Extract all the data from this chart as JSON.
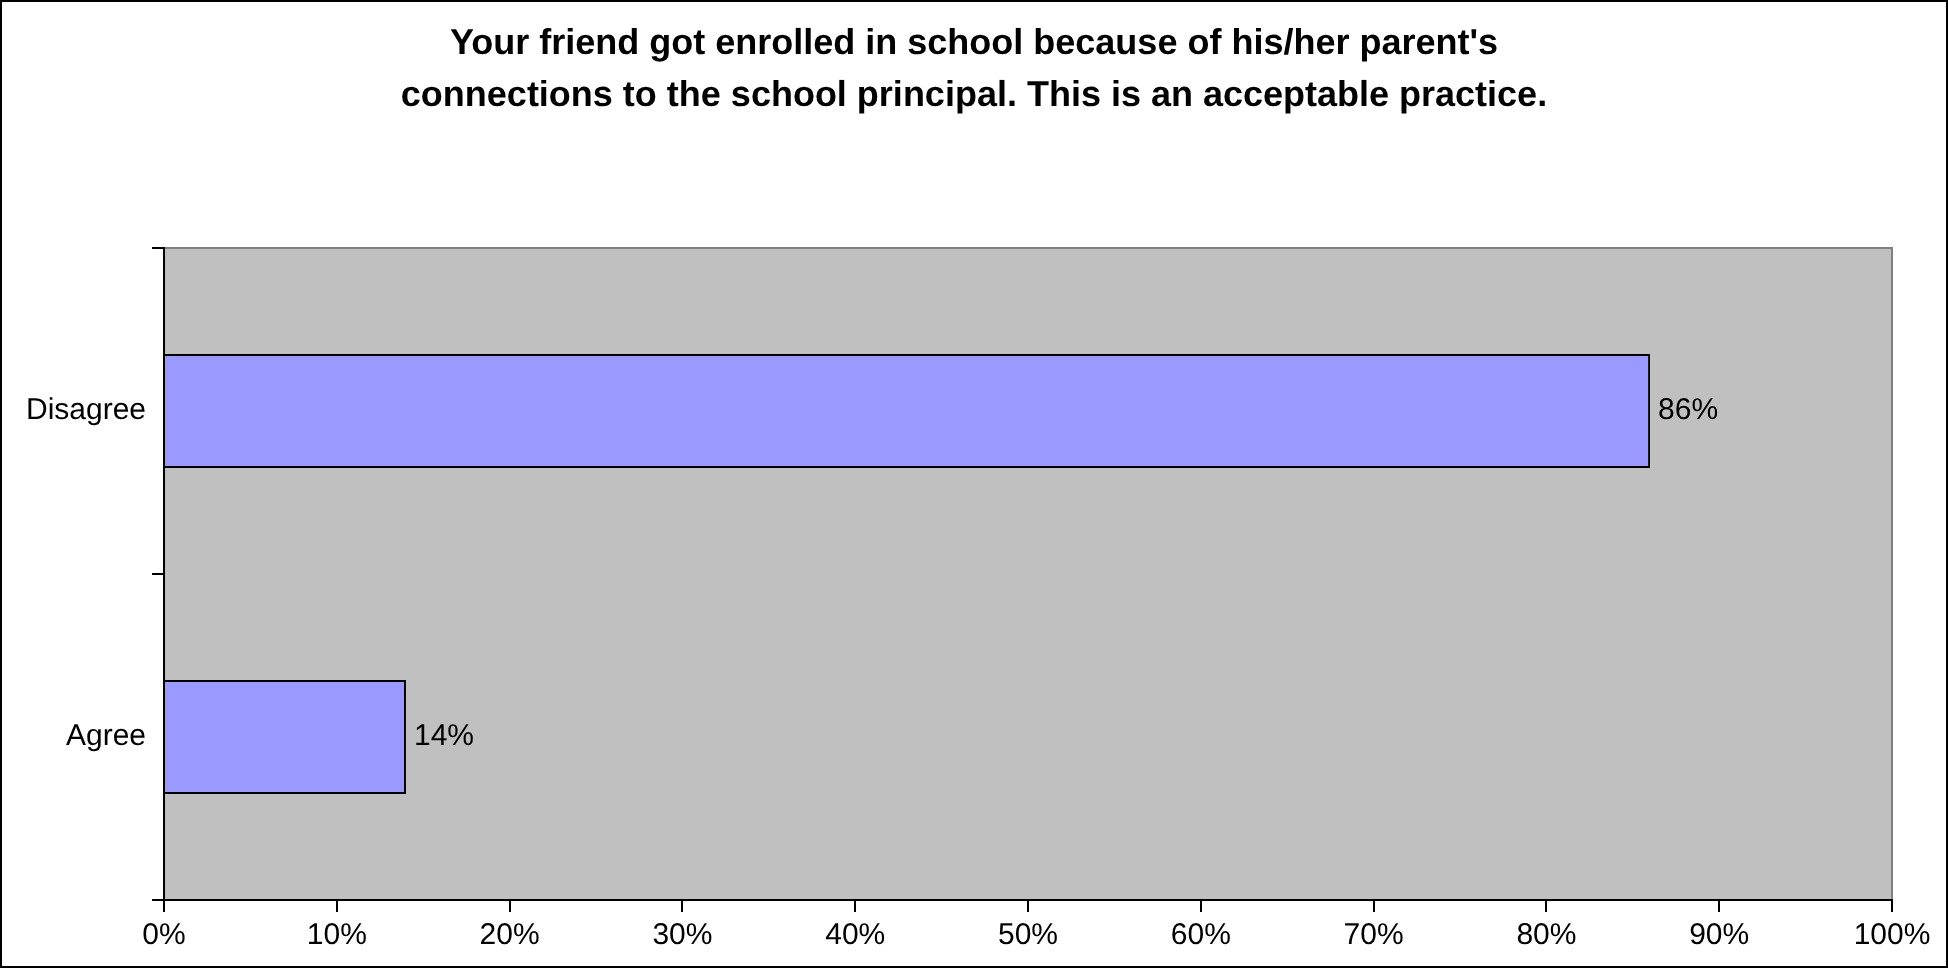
{
  "chart_data": {
    "type": "bar",
    "orientation": "horizontal",
    "title": "Your friend got enrolled in school because of his/her parent's connections to the school principal. This is an acceptable practice.",
    "categories": [
      "Disagree",
      "Agree"
    ],
    "values": [
      86,
      14
    ],
    "color": "#9999ff",
    "value_labels": [
      "86%",
      "14%"
    ],
    "xlim": [
      0,
      100
    ],
    "xticks": [
      {
        "value": 0,
        "label": "0%"
      },
      {
        "value": 10,
        "label": "10%"
      },
      {
        "value": 20,
        "label": "20%"
      },
      {
        "value": 30,
        "label": "30%"
      },
      {
        "value": 40,
        "label": "40%"
      },
      {
        "value": 50,
        "label": "50%"
      },
      {
        "value": 60,
        "label": "60%"
      },
      {
        "value": 70,
        "label": "70%"
      },
      {
        "value": 80,
        "label": "80%"
      },
      {
        "value": 90,
        "label": "90%"
      },
      {
        "value": 100,
        "label": "100%"
      }
    ],
    "grid": false,
    "legend": false
  }
}
